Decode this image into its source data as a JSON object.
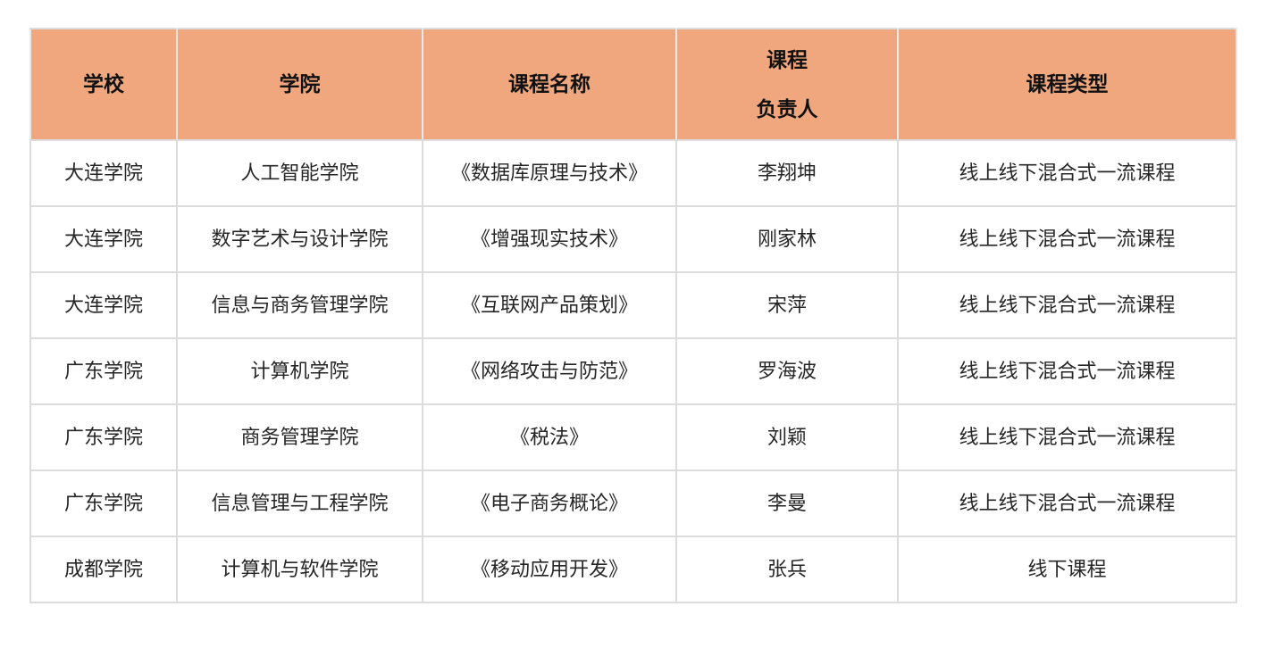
{
  "table": {
    "title": "course-list-table",
    "headers": [
      "学校",
      "学院",
      "课程名称",
      "课程\n负责人",
      "课程类型"
    ],
    "rows": [
      [
        "大连学院",
        "人工智能学院",
        "《数据库原理与技术》",
        "李翔坤",
        "线上线下混合式一流课程"
      ],
      [
        "大连学院",
        "数字艺术与设计学院",
        "《增强现实技术》",
        "刚家林",
        "线上线下混合式一流课程"
      ],
      [
        "大连学院",
        "信息与商务管理学院",
        "《互联网产品策划》",
        "宋萍",
        "线上线下混合式一流课程"
      ],
      [
        "广东学院",
        "计算机学院",
        "《网络攻击与防范》",
        "罗海波",
        "线上线下混合式一流课程"
      ],
      [
        "广东学院",
        "商务管理学院",
        "《税法》",
        "刘颖",
        "线上线下混合式一流课程"
      ],
      [
        "广东学院",
        "信息管理与工程学院",
        "《电子商务概论》",
        "李曼",
        "线上线下混合式一流课程"
      ],
      [
        "成都学院",
        "计算机与软件学院",
        "《移动应用开发》",
        "张兵",
        "线下课程"
      ]
    ],
    "style": {
      "header_background": "#F0A77E",
      "border_color": "#DCDCDC",
      "header_text_color": "#111111",
      "body_text_color": "#262626"
    }
  }
}
